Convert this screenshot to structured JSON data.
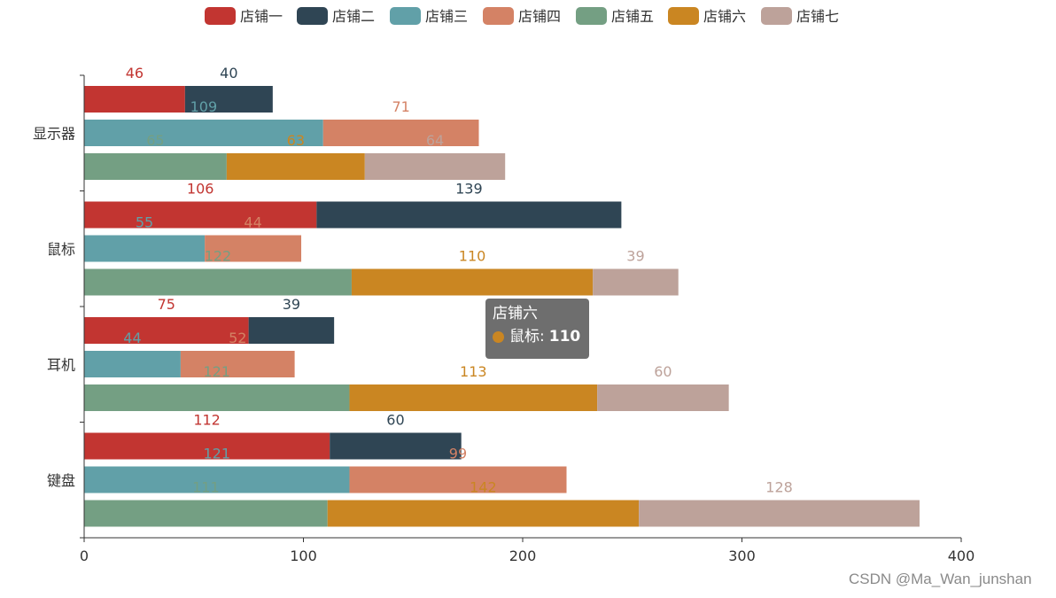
{
  "chart_data": {
    "type": "bar",
    "orientation": "horizontal",
    "categories": [
      "显示器",
      "鼠标",
      "耳机",
      "键盘"
    ],
    "xlim": [
      0,
      400
    ],
    "xticks": [
      0,
      100,
      200,
      300,
      400
    ],
    "legend_position": "top-center",
    "series": [
      {
        "name": "店铺一",
        "color": "#c23531",
        "row": 0,
        "values": [
          46,
          106,
          75,
          112
        ]
      },
      {
        "name": "店铺二",
        "color": "#2f4554",
        "row": 0,
        "values": [
          40,
          139,
          39,
          60
        ]
      },
      {
        "name": "店铺三",
        "color": "#61a0a8",
        "row": 1,
        "values": [
          109,
          55,
          44,
          121
        ]
      },
      {
        "name": "店铺四",
        "color": "#d48265",
        "row": 1,
        "values": [
          71,
          44,
          52,
          99
        ]
      },
      {
        "name": "店铺五",
        "color": "#749f83",
        "row": 2,
        "values": [
          65,
          122,
          121,
          111
        ]
      },
      {
        "name": "店铺六",
        "color": "#ca8622",
        "row": 2,
        "values": [
          63,
          110,
          113,
          142
        ]
      },
      {
        "name": "店铺七",
        "color": "#bda29a",
        "row": 2,
        "values": [
          64,
          39,
          60,
          128
        ]
      }
    ]
  },
  "tooltip": {
    "title": "店铺六",
    "category": "鼠标",
    "separator": ":",
    "value": "110",
    "dot_color": "#ca8622"
  },
  "watermark": "CSDN @Ma_Wan_junshan"
}
